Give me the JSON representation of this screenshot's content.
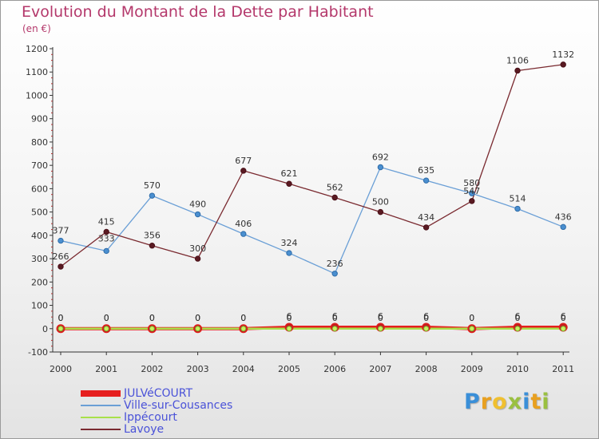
{
  "chart_data": {
    "type": "line",
    "title": "Evolution du Montant de la Dette par Habitant",
    "subtitle": "(en €)",
    "xlabel": "",
    "ylabel": "",
    "x": [
      "2000",
      "2001",
      "2002",
      "2003",
      "2004",
      "2005",
      "2006",
      "2007",
      "2008",
      "2009",
      "2010",
      "2011"
    ],
    "ylim": [
      -100,
      1200
    ],
    "yticks": [
      -100,
      0,
      100,
      200,
      300,
      400,
      500,
      600,
      700,
      800,
      900,
      1000,
      1100,
      1200
    ],
    "grid": false,
    "legend_position": "bottom-left",
    "series": [
      {
        "name": "JULVéCOURT",
        "color": "#e61e1e",
        "values": [
          0,
          0,
          0,
          0,
          0,
          6,
          6,
          6,
          6,
          0,
          6,
          6
        ]
      },
      {
        "name": "Ville-sur-Cousances",
        "color": "#6a9fd6",
        "values": [
          377,
          333,
          570,
          490,
          406,
          324,
          236,
          692,
          635,
          580,
          514,
          436
        ]
      },
      {
        "name": "Ippécourt",
        "color": "#a8e04a",
        "values": [
          0,
          0,
          0,
          0,
          0,
          0,
          0,
          0,
          0,
          0,
          0,
          0
        ]
      },
      {
        "name": "Lavoye",
        "color": "#7a2a30",
        "values": [
          266,
          415,
          356,
          300,
          677,
          621,
          562,
          500,
          434,
          547,
          1106,
          1132
        ]
      }
    ]
  },
  "logo": {
    "letters": [
      "P",
      "r",
      "o",
      "x",
      "i",
      "t",
      "i"
    ],
    "colors": [
      "#3a8fd8",
      "#e8a020",
      "#f0c030",
      "#9ac040",
      "#3a8fd8",
      "#e8a020",
      "#9ac040"
    ]
  }
}
